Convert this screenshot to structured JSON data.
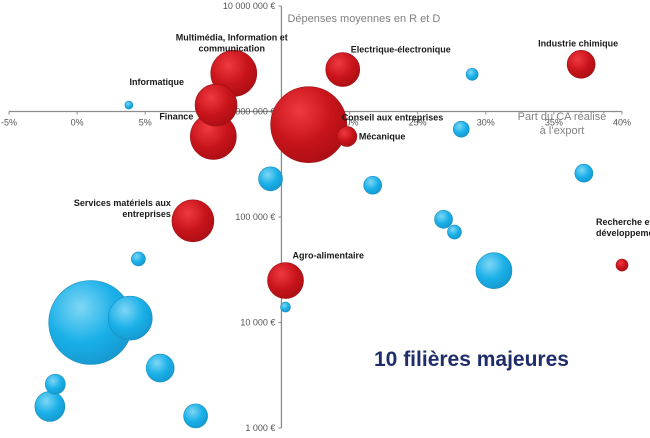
{
  "chart_data": {
    "type": "scatter",
    "subtype": "bubble",
    "title": "10 filières majeures",
    "xlabel": "Part du CA réalisé à l’export",
    "xlabel_lines": [
      "Part du CA réalisé",
      "à l’export"
    ],
    "ylabel": "Dépenses moyennes en R et D",
    "x_unit": "%",
    "y_scale": "log",
    "xlim": [
      -5,
      40
    ],
    "ylim": [
      1000,
      10000000
    ],
    "x_ticks": [
      "-5%",
      "0%",
      "5%",
      "10%",
      "15%",
      "20%",
      "25%",
      "30%",
      "35%",
      "40%"
    ],
    "y_ticks": [
      "1 000 €",
      "10 000 €",
      "100 000 €",
      "1 000 000 €",
      "10 000 000 €"
    ],
    "grid": false,
    "colors": {
      "major": "#c8141b",
      "other": "#1ab0e8"
    },
    "series": [
      {
        "name": "10 filières majeures",
        "color": "#c8141b",
        "points": [
          {
            "label_lines": [
              "Multimédia, Information et",
              "communication"
            ],
            "x": 11.5,
            "y": 2300000,
            "size": 23
          },
          {
            "label_lines": [
              "Informatique"
            ],
            "x": 10.2,
            "y": 1150000,
            "size": 21
          },
          {
            "label_lines": [
              "Finance"
            ],
            "x": 10.0,
            "y": 580000,
            "size": 23
          },
          {
            "label_lines": [
              "Electrique-électronique"
            ],
            "x": 19.5,
            "y": 2500000,
            "size": 17
          },
          {
            "label_lines": [
              "Industrie chimique"
            ],
            "x": 37.0,
            "y": 2800000,
            "size": 14
          },
          {
            "label_lines": [
              "Conseil aux entreprises"
            ],
            "x": 17.0,
            "y": 750000,
            "size": 38
          },
          {
            "label_lines": [
              "Mécanique"
            ],
            "x": 19.8,
            "y": 580000,
            "size": 10
          },
          {
            "label_lines": [
              "Services matériels aux",
              "entreprises"
            ],
            "x": 8.5,
            "y": 92000,
            "size": 21
          },
          {
            "label_lines": [
              "Agro-alimentaire"
            ],
            "x": 15.3,
            "y": 25000,
            "size": 18
          },
          {
            "label_lines": [
              "Recherche et",
              "développement"
            ],
            "x": 40.0,
            "y": 35000,
            "size": 6
          }
        ]
      },
      {
        "name": "Autres filières",
        "color": "#1ab0e8",
        "points": [
          {
            "x": 3.8,
            "y": 1150000,
            "size": 4
          },
          {
            "x": 29.0,
            "y": 2250000,
            "size": 6
          },
          {
            "x": 28.2,
            "y": 680000,
            "size": 8
          },
          {
            "x": 14.2,
            "y": 230000,
            "size": 12
          },
          {
            "x": 21.7,
            "y": 200000,
            "size": 9
          },
          {
            "x": 37.2,
            "y": 260000,
            "size": 9
          },
          {
            "x": 26.9,
            "y": 95000,
            "size": 9
          },
          {
            "x": 27.7,
            "y": 72000,
            "size": 7
          },
          {
            "x": 4.5,
            "y": 40000,
            "size": 7
          },
          {
            "x": 30.6,
            "y": 31000,
            "size": 18
          },
          {
            "x": 15.3,
            "y": 14000,
            "size": 5
          },
          {
            "x": 1.0,
            "y": 10000,
            "size": 42
          },
          {
            "x": 3.9,
            "y": 11000,
            "size": 22
          },
          {
            "x": 6.1,
            "y": 3700,
            "size": 14
          },
          {
            "x": -1.6,
            "y": 2600,
            "size": 10
          },
          {
            "x": -2.0,
            "y": 1600,
            "size": 15
          },
          {
            "x": 8.7,
            "y": 1300,
            "size": 12
          }
        ]
      }
    ]
  }
}
